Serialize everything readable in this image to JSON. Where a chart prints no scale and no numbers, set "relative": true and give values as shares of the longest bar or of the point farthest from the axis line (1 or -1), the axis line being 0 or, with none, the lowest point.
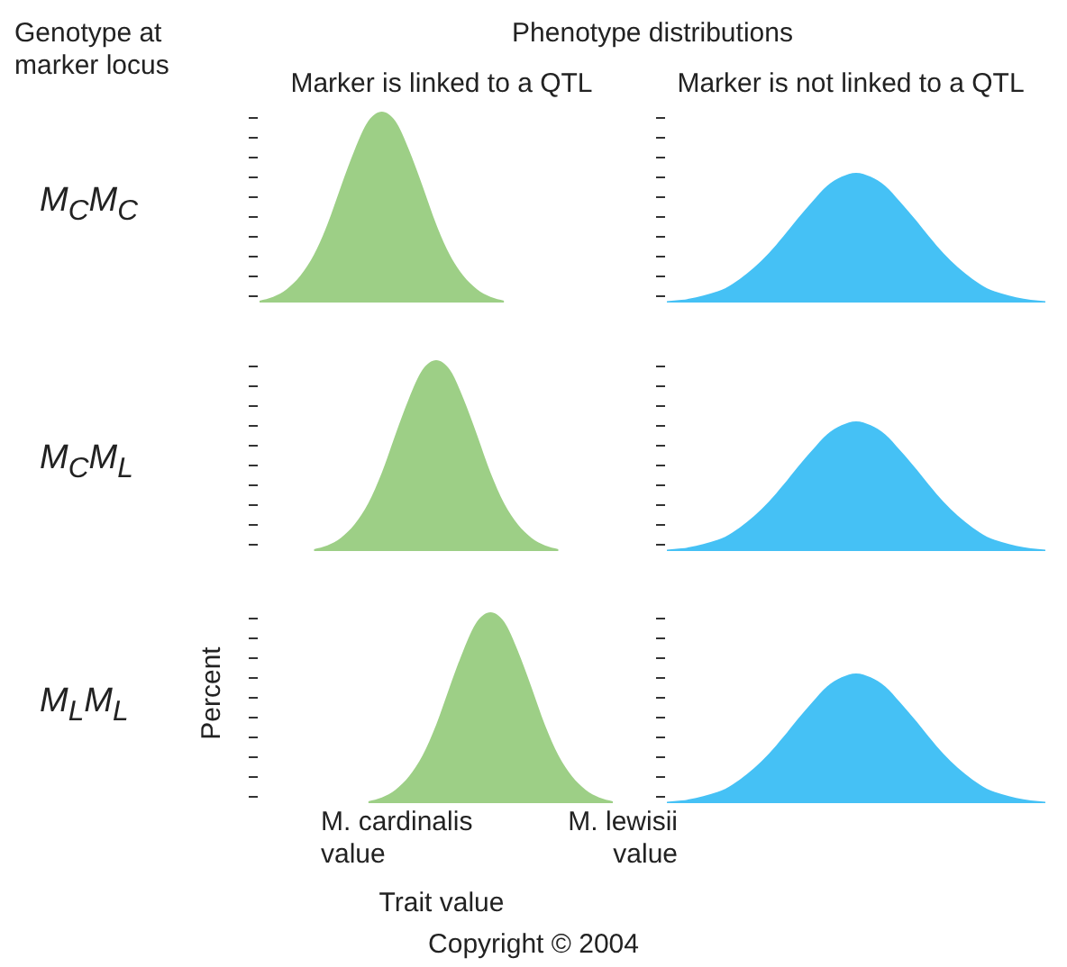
{
  "chart_data": [
    {
      "type": "area",
      "title": "Marker is linked to a QTL",
      "relative": true,
      "color": "#9dcf86",
      "annotations": [
        "Phenotype distributions",
        "Genotype at marker locus",
        "M$_{C}$M$_{C}$"
      ],
      "categories": [
        null,
        null,
        null,
        null,
        null,
        null,
        null,
        null,
        null,
        null,
        null,
        null,
        null,
        null,
        null,
        null,
        null,
        null,
        null,
        null,
        null,
        null,
        null,
        null,
        null,
        null,
        null
      ],
      "values": [
        0.01,
        0.03,
        0.07,
        0.14,
        0.25,
        0.41,
        0.61,
        0.8,
        0.95,
        1,
        0.95,
        0.8,
        0.61,
        0.41,
        0.25,
        0.14,
        0.07,
        0.03,
        0.01,
        null,
        null,
        null,
        null,
        null,
        null,
        null,
        null
      ]
    },
    {
      "type": "area",
      "title": "Marker is not linked to a QTL",
      "relative": true,
      "color": "#45c1f5",
      "categories": [
        null,
        null,
        null,
        null,
        null,
        null,
        null,
        null,
        null,
        null,
        null,
        null,
        null,
        null,
        null,
        null,
        null,
        null,
        null,
        null,
        null,
        null,
        null,
        null,
        null,
        null,
        null
      ],
      "values": [
        0.01,
        0.02,
        0.04,
        0.07,
        0.11,
        0.18,
        0.27,
        0.38,
        0.51,
        0.65,
        0.78,
        0.9,
        0.97,
        1,
        0.97,
        0.9,
        0.78,
        0.65,
        0.51,
        0.38,
        0.27,
        0.18,
        0.11,
        0.07,
        0.04,
        0.02,
        0.01
      ]
    },
    {
      "type": "area",
      "relative": true,
      "color": "#9dcf86",
      "annotations": [
        "M$_{C}$M$_{L}$"
      ],
      "categories": [
        null,
        null,
        null,
        null,
        null,
        null,
        null,
        null,
        null,
        null,
        null,
        null,
        null,
        null,
        null,
        null,
        null,
        null,
        null,
        null,
        null,
        null,
        null,
        null,
        null,
        null,
        null
      ],
      "values": [
        null,
        null,
        null,
        null,
        0.01,
        0.03,
        0.07,
        0.14,
        0.25,
        0.41,
        0.61,
        0.8,
        0.95,
        1,
        0.95,
        0.8,
        0.61,
        0.41,
        0.25,
        0.14,
        0.07,
        0.03,
        0.01,
        null,
        null,
        null,
        null
      ]
    },
    {
      "type": "area",
      "relative": true,
      "color": "#45c1f5",
      "categories": [
        null,
        null,
        null,
        null,
        null,
        null,
        null,
        null,
        null,
        null,
        null,
        null,
        null,
        null,
        null,
        null,
        null,
        null,
        null,
        null,
        null,
        null,
        null,
        null,
        null,
        null,
        null
      ],
      "values": [
        0.01,
        0.02,
        0.04,
        0.07,
        0.11,
        0.18,
        0.27,
        0.38,
        0.51,
        0.65,
        0.78,
        0.9,
        0.97,
        1,
        0.97,
        0.9,
        0.78,
        0.65,
        0.51,
        0.38,
        0.27,
        0.18,
        0.11,
        0.07,
        0.04,
        0.02,
        0.01
      ]
    },
    {
      "type": "area",
      "ylabel": "Percent",
      "xlabel": "Trait value",
      "relative": true,
      "color": "#9dcf86",
      "annotations": [
        "M$_{L}$M$_{L}$",
        "M. cardinalis value",
        "M. lewisii value",
        "Copyright © 2004"
      ],
      "categories": [
        null,
        null,
        null,
        null,
        null,
        null,
        null,
        null,
        null,
        null,
        null,
        null,
        null,
        null,
        null,
        null,
        null,
        null,
        null,
        null,
        null,
        null,
        null,
        null,
        null,
        null,
        null
      ],
      "values": [
        null,
        null,
        null,
        null,
        null,
        null,
        null,
        null,
        0.01,
        0.03,
        0.07,
        0.14,
        0.25,
        0.41,
        0.61,
        0.8,
        0.95,
        1,
        0.95,
        0.8,
        0.61,
        0.41,
        0.25,
        0.14,
        0.07,
        0.03,
        0.01
      ]
    },
    {
      "type": "area",
      "relative": true,
      "color": "#45c1f5",
      "categories": [
        null,
        null,
        null,
        null,
        null,
        null,
        null,
        null,
        null,
        null,
        null,
        null,
        null,
        null,
        null,
        null,
        null,
        null,
        null,
        null,
        null,
        null,
        null,
        null,
        null,
        null,
        null
      ],
      "values": [
        0.01,
        0.02,
        0.04,
        0.07,
        0.11,
        0.18,
        0.27,
        0.38,
        0.51,
        0.65,
        0.78,
        0.9,
        0.97,
        1,
        0.97,
        0.9,
        0.78,
        0.65,
        0.51,
        0.38,
        0.27,
        0.18,
        0.11,
        0.07,
        0.04,
        0.02,
        0.01
      ]
    }
  ]
}
